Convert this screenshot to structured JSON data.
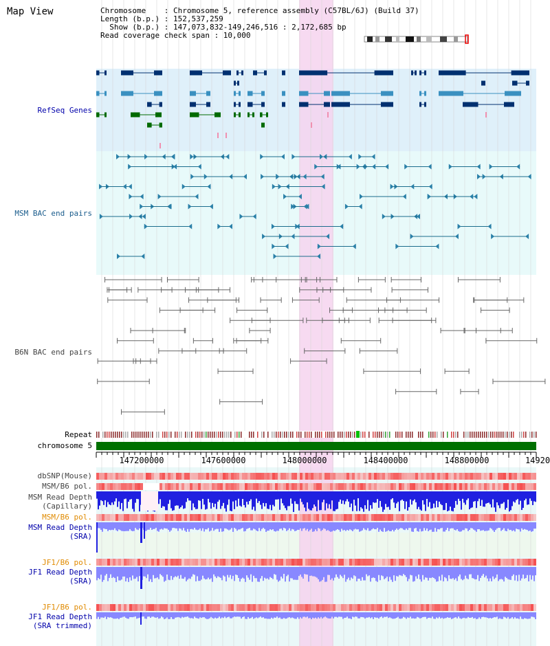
{
  "header": {
    "title": "Map View",
    "info_lines": [
      "Chromosome    : Chromosome 5, reference assembly (C57BL/6J) (Build 37)",
      "Length (b.p.) : 152,537,259",
      "  Show (b.p.) : 147,073,832-149,246,516 : 2,172,685 bp",
      "Read coverage check span : 10,000"
    ]
  },
  "tracks": {
    "refseq": "RefSeq Genes",
    "msm_bac": "MSM BAC end pairs",
    "b6n_bac": "B6N BAC end pairs",
    "repeat": "Repeat",
    "chromosome": "chromosome 5",
    "dbsnp": "dbSNP(Mouse)",
    "msm_b6_pol_1": "MSM/B6 pol.",
    "msm_depth_cap_1": "MSM Read Depth",
    "msm_depth_cap_2": "(Capillary)",
    "msm_b6_pol_2": "MSM/B6 pol.",
    "msm_depth_sra_1": "MSM Read Depth",
    "msm_depth_sra_2": "(SRA)",
    "jf1_b6_pol_1": "JF1/B6 pol.",
    "jf1_depth_sra_1": "JF1 Read Depth",
    "jf1_depth_sra_2": "(SRA)",
    "jf1_b6_pol_2": "JF1/B6 pol.",
    "jf1_depth_trim_1": "JF1 Read Depth",
    "jf1_depth_trim_2": "(SRA trimmed)"
  },
  "axis": {
    "ticks": [
      "147200000",
      "147600000",
      "148000000",
      "148400000",
      "148800000",
      "14920"
    ]
  },
  "colors": {
    "refseq_bg": "#dff0fa",
    "bac_bg": "#e8fafa",
    "highlight": "#f6d3ee",
    "gene_dark": "#003070",
    "gene_mid": "#3a90c0",
    "gene_green": "#006a00",
    "chromosome": "#007000",
    "depth_blue": "#2020e0",
    "depth_light": "#8888ff",
    "pol_red": "#f04040"
  }
}
